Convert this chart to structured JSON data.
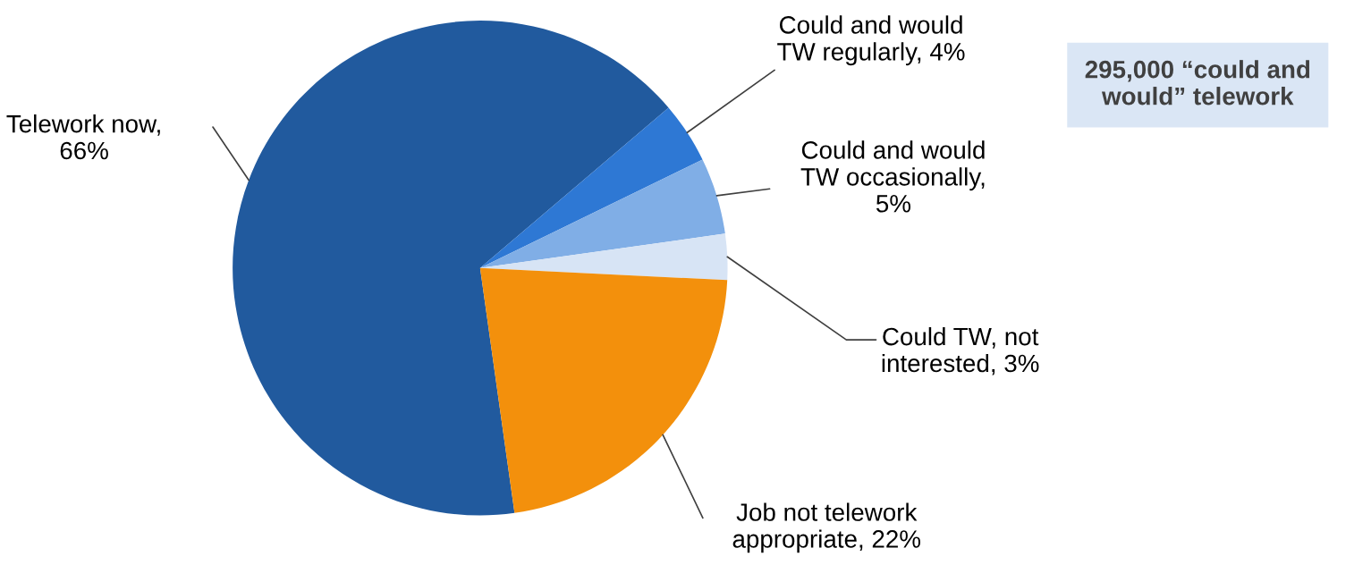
{
  "chart_data": {
    "type": "pie",
    "categories": [
      "Telework now, 66%",
      "Could and would TW regularly, 4%",
      "Could and would TW occasionally, 5%",
      "Could TW, not interested, 3%",
      "Job not telework appropriate, 22%"
    ],
    "values": [
      66,
      4,
      5,
      3,
      22
    ],
    "colors": [
      "#215a9e",
      "#2e78d4",
      "#80aee6",
      "#d7e4f5",
      "#f3900c"
    ],
    "annotations": [
      "295,000 “could and would” telework"
    ],
    "legend": false
  }
}
